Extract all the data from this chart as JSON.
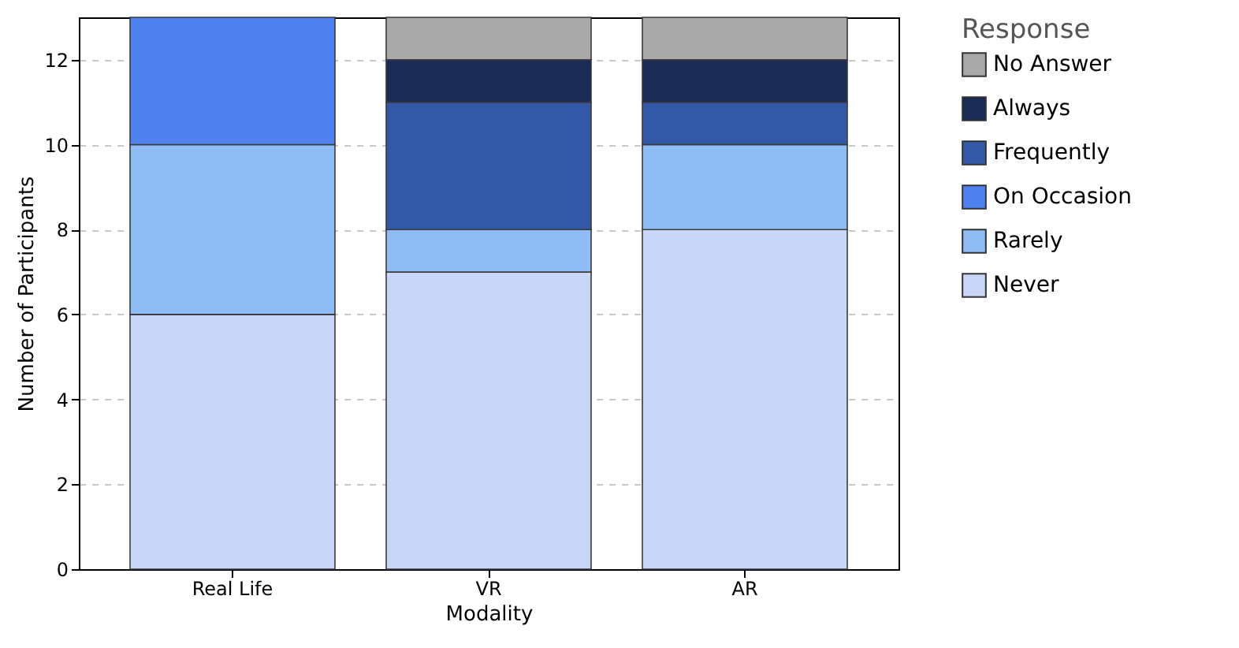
{
  "chart_data": {
    "type": "bar",
    "stacked": true,
    "xlabel": "Modality",
    "ylabel": "Number of Participants",
    "legend_title": "Response",
    "categories": [
      "Real Life",
      "VR",
      "AR"
    ],
    "series": [
      {
        "name": "Never",
        "color": "#c9d6f7",
        "values": [
          6,
          7,
          8
        ]
      },
      {
        "name": "Rarely",
        "color": "#8fbcf5",
        "values": [
          4,
          1,
          2
        ]
      },
      {
        "name": "On Occasion",
        "color": "#4f82f0",
        "values": [
          3,
          null,
          null
        ]
      },
      {
        "name": "Frequently",
        "color": "#3358a8",
        "values": [
          null,
          3,
          1
        ]
      },
      {
        "name": "Always",
        "color": "#1a2c55",
        "values": [
          null,
          1,
          1
        ]
      },
      {
        "name": "No Answer",
        "color": "#a9a9a9",
        "values": [
          null,
          1,
          1
        ]
      }
    ],
    "ylim": [
      0,
      13
    ],
    "yticks": [
      0,
      2,
      4,
      6,
      8,
      10,
      12
    ],
    "grid": "y",
    "legend": "right"
  }
}
